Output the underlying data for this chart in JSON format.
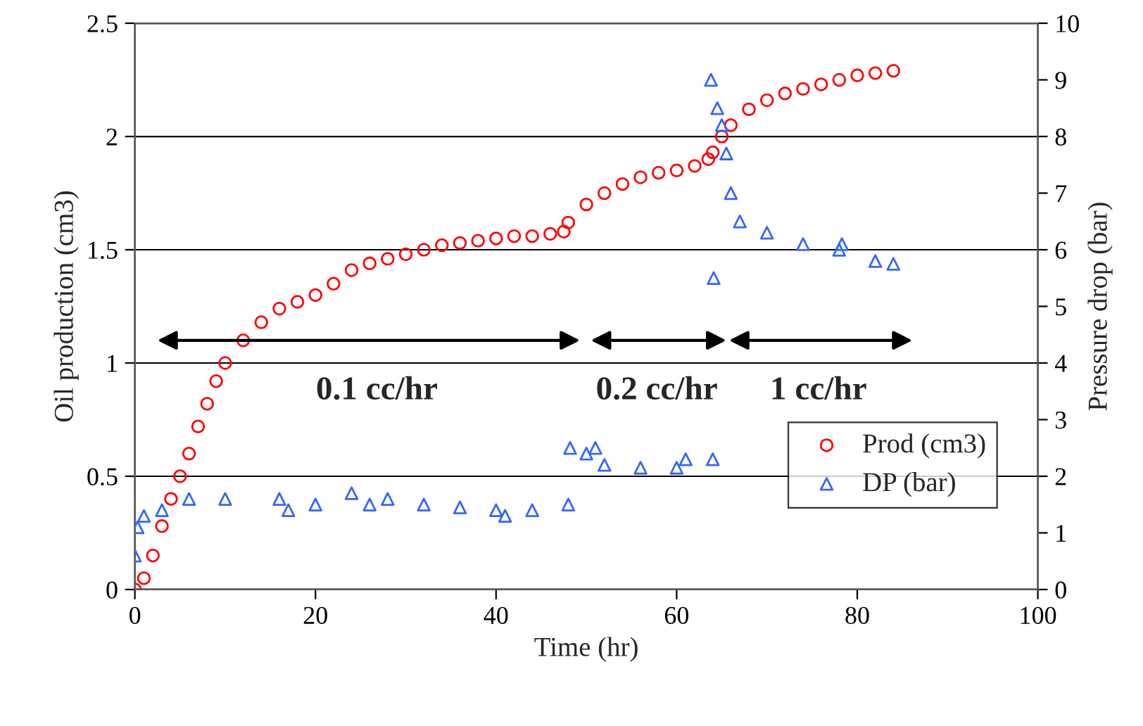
{
  "chart_data": {
    "type": "scatter",
    "xlabel": "Time (hr)",
    "ylabel": "Oil production (cm3)",
    "y2label": "Pressure drop (bar)",
    "xlim": [
      0,
      100
    ],
    "xticks": [
      0,
      20,
      40,
      60,
      80,
      100
    ],
    "ylim": [
      0,
      2.5
    ],
    "yticks": [
      0,
      0.5,
      1,
      1.5,
      2,
      2.5
    ],
    "y2lim": [
      0,
      10
    ],
    "y2ticks": [
      0,
      1,
      2,
      3,
      4,
      5,
      6,
      7,
      8,
      9,
      10
    ],
    "grid": "y",
    "legend": "bottom right",
    "annotations": [
      "0.1 cc/hr",
      "0.2 cc/hr",
      "1 cc/hr"
    ],
    "series": [
      {
        "name": "Prod (cm3)",
        "color": "#ff0000",
        "marker": "circle",
        "x": [
          0,
          1,
          2,
          3,
          4,
          5,
          6,
          7,
          8,
          9,
          10,
          12,
          14,
          16,
          18,
          20,
          22,
          24,
          26,
          28,
          30,
          32,
          34,
          36,
          38,
          40,
          42,
          44,
          46,
          47.5,
          48,
          50,
          52,
          54,
          56,
          58,
          60,
          62,
          63.5,
          64,
          65,
          66,
          68,
          70,
          72,
          74,
          76,
          78,
          80,
          82,
          84
        ],
        "values": [
          0,
          0.05,
          0.15,
          0.28,
          0.4,
          0.5,
          0.6,
          0.72,
          0.82,
          0.92,
          1.0,
          1.1,
          1.18,
          1.24,
          1.27,
          1.3,
          1.35,
          1.41,
          1.44,
          1.46,
          1.48,
          1.5,
          1.52,
          1.53,
          1.54,
          1.55,
          1.56,
          1.56,
          1.57,
          1.58,
          1.62,
          1.7,
          1.75,
          1.79,
          1.82,
          1.84,
          1.85,
          1.87,
          1.9,
          1.93,
          2.0,
          2.05,
          2.12,
          2.16,
          2.19,
          2.21,
          2.23,
          2.25,
          2.27,
          2.28,
          2.29
        ]
      },
      {
        "name": "DP (bar)",
        "color": "#3366ff",
        "marker": "triangle",
        "axis": "y2",
        "x": [
          0,
          0.3,
          1,
          3,
          6,
          10,
          16,
          17,
          20,
          24,
          26,
          28,
          32,
          36,
          40,
          41,
          44,
          48,
          48.2,
          50,
          51,
          52,
          56,
          60,
          61,
          64,
          63.8,
          64.1,
          64.5,
          65,
          65.5,
          66,
          67,
          70,
          74,
          78,
          78.3,
          82,
          84
        ],
        "values": [
          0.6,
          1.1,
          1.3,
          1.4,
          1.6,
          1.6,
          1.6,
          1.4,
          1.5,
          1.7,
          1.5,
          1.6,
          1.5,
          1.45,
          1.4,
          1.3,
          1.4,
          1.5,
          2.5,
          2.4,
          2.5,
          2.2,
          2.15,
          2.15,
          2.3,
          2.3,
          9.0,
          5.5,
          8.5,
          8.2,
          7.7,
          7.0,
          6.5,
          6.3,
          6.1,
          6.0,
          6.1,
          5.8,
          5.75
        ]
      }
    ]
  }
}
